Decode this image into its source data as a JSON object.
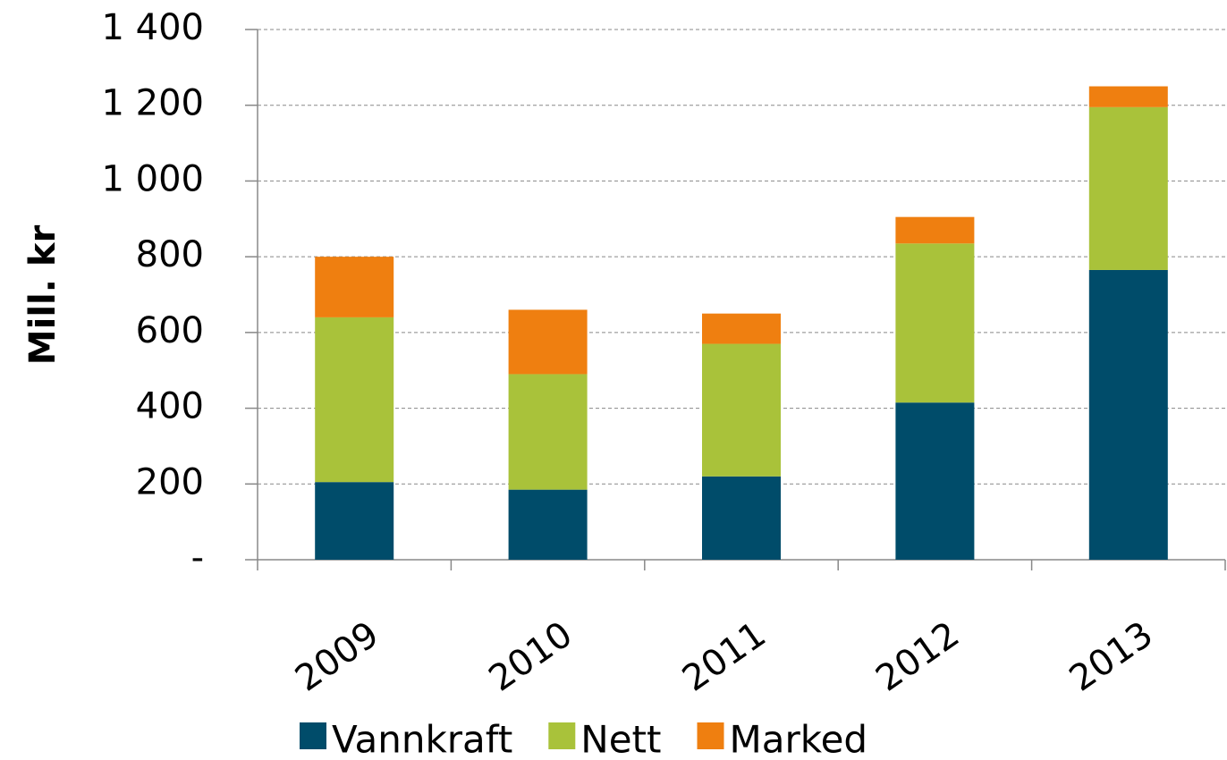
{
  "chart_data": {
    "type": "stacked_bar",
    "y_label": "Mill. kr",
    "categories": [
      "2009",
      "2010",
      "2011",
      "2012",
      "2013"
    ],
    "series": [
      {
        "name": "Vannkraft",
        "color": "#004c6a",
        "values": [
          205,
          185,
          220,
          415,
          765
        ]
      },
      {
        "name": "Nett",
        "color": "#a9c23a",
        "values": [
          435,
          305,
          350,
          420,
          430
        ]
      },
      {
        "name": "Marked",
        "color": "#ef7f10",
        "values": [
          160,
          170,
          80,
          70,
          55
        ]
      }
    ],
    "ylim": [
      0,
      1400
    ],
    "yticks": [
      {
        "value": 0,
        "label": "-"
      },
      200,
      400,
      600,
      800,
      {
        "value": 1000,
        "label": "1 000"
      },
      {
        "value": 1200,
        "label": "1 200"
      },
      {
        "value": 1400,
        "label": "1 400"
      }
    ],
    "grid": true,
    "legend": "bottom"
  }
}
